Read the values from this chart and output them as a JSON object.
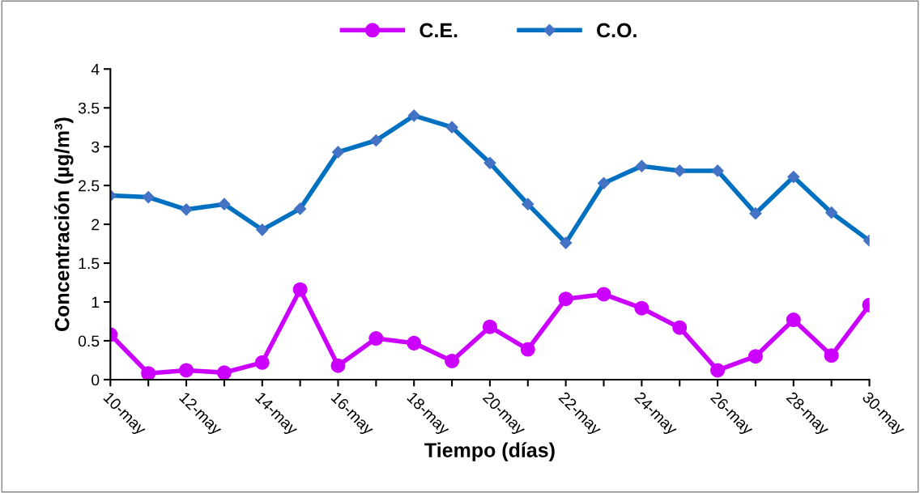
{
  "chart_data": {
    "type": "line",
    "xlabel": "Tiempo (días)",
    "ylabel": "Concentración (µg/m³)",
    "categories": [
      "10-may",
      null,
      "12-may",
      null,
      "14-may",
      null,
      "16-may",
      null,
      "18-may",
      null,
      "20-may",
      null,
      "22-may",
      null,
      "24-may",
      null,
      "26-may",
      null,
      "28-may",
      null,
      "30-may"
    ],
    "series": [
      {
        "name": "C.E.",
        "color": "#cc00ff",
        "marker": "circle",
        "values": [
          0.58,
          0.08,
          0.12,
          0.09,
          0.22,
          1.16,
          0.18,
          0.53,
          0.47,
          0.24,
          0.68,
          0.39,
          1.04,
          1.1,
          0.92,
          0.67,
          0.12,
          0.3,
          0.77,
          0.31,
          0.96
        ]
      },
      {
        "name": "C.O.",
        "color": "#0070c0",
        "marker": "diamond",
        "values": [
          2.37,
          2.35,
          2.19,
          2.26,
          1.93,
          2.2,
          2.93,
          3.08,
          3.4,
          3.25,
          2.79,
          2.26,
          1.76,
          2.53,
          2.75,
          2.69,
          2.69,
          2.14,
          2.61,
          2.15,
          1.79
        ]
      }
    ],
    "ylim": [
      0,
      4
    ],
    "yticks": [
      0,
      0.5,
      1,
      1.5,
      2,
      2.5,
      3,
      3.5,
      4
    ],
    "grid": false,
    "legend": "top",
    "line_style": "solid"
  }
}
